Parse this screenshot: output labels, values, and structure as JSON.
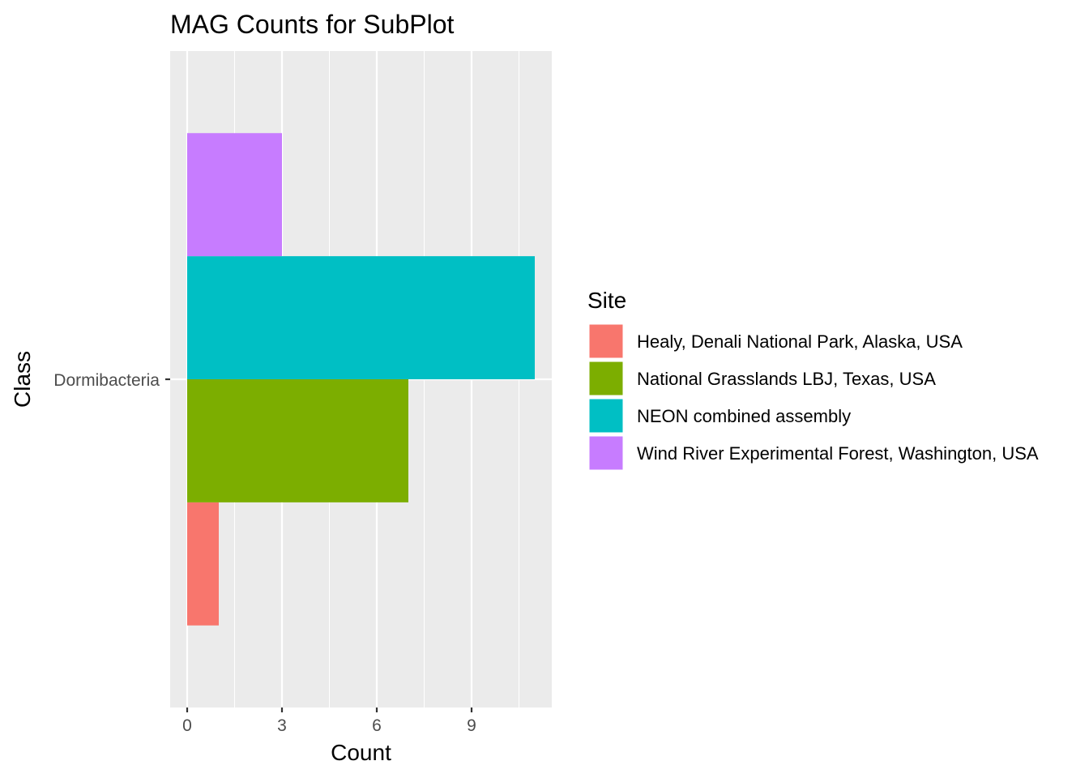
{
  "chart_data": {
    "type": "bar",
    "orientation": "horizontal",
    "position": "dodge",
    "title": "MAG Counts for SubPlot",
    "xlabel": "Count",
    "ylabel": "Class",
    "categories": [
      "Dormibacteria"
    ],
    "xlim": [
      0,
      11
    ],
    "x_ticks": [
      0,
      3,
      6,
      9
    ],
    "grid": true,
    "legend": {
      "title": "Site",
      "position": "right"
    },
    "series": [
      {
        "name": "Healy, Denali National Park, Alaska, USA",
        "color": "#F8766D",
        "values": [
          1
        ]
      },
      {
        "name": "National Grasslands LBJ, Texas, USA",
        "color": "#7CAE00",
        "values": [
          7
        ]
      },
      {
        "name": "NEON combined assembly",
        "color": "#00BFC4",
        "values": [
          11
        ]
      },
      {
        "name": "Wind River Experimental Forest, Washington, USA",
        "color": "#C77CFF",
        "values": [
          3
        ]
      }
    ]
  }
}
